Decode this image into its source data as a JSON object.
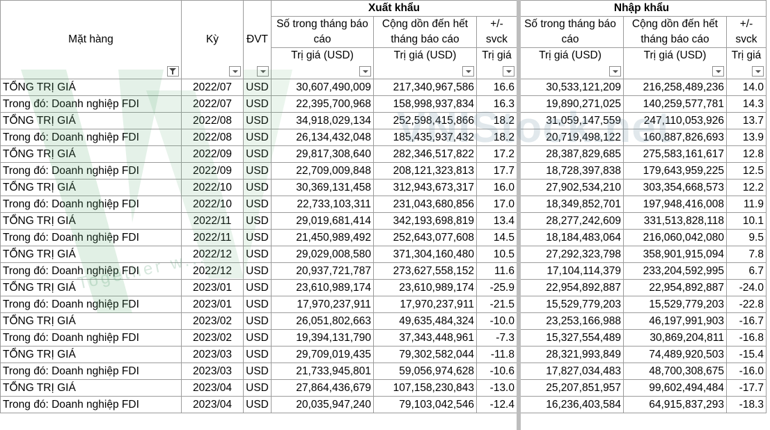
{
  "header": {
    "export_group": "Xuất khẩu",
    "import_group": "Nhập khẩu",
    "col_item": "Mặt hàng",
    "col_period": "Kỳ",
    "col_unit": "ĐVT",
    "col_month": "Số trong tháng báo cáo",
    "col_cumulative": "Cộng dồn đến hết tháng báo cáo",
    "col_change": "+/- svck",
    "col_value_usd": "Trị giá (USD)",
    "col_value": "Trị giá"
  },
  "watermark": {
    "text": "VNIStock.net",
    "tagline": "Together w..."
  },
  "rows": [
    {
      "item": "TỔNG TRỊ GIÁ",
      "period": "2022/07",
      "unit": "USD",
      "ex_month": "30,607,490,009",
      "ex_cum": "217,340,967,586",
      "ex_chg": "16.6",
      "im_month": "30,533,121,209",
      "im_cum": "216,258,489,236",
      "im_chg": "14.0"
    },
    {
      "item": "Trong đó: Doanh nghiệp FDI",
      "period": "2022/07",
      "unit": "USD",
      "ex_month": "22,395,700,968",
      "ex_cum": "158,998,937,834",
      "ex_chg": "16.3",
      "im_month": "19,890,271,025",
      "im_cum": "140,259,577,781",
      "im_chg": "14.3"
    },
    {
      "item": "TỔNG TRỊ GIÁ",
      "period": "2022/08",
      "unit": "USD",
      "ex_month": "34,918,029,134",
      "ex_cum": "252,598,415,866",
      "ex_chg": "18.2",
      "im_month": "31,059,147,559",
      "im_cum": "247,110,053,926",
      "im_chg": "13.7"
    },
    {
      "item": "Trong đó: Doanh nghiệp FDI",
      "period": "2022/08",
      "unit": "USD",
      "ex_month": "26,134,432,048",
      "ex_cum": "185,435,937,432",
      "ex_chg": "18.2",
      "im_month": "20,719,498,122",
      "im_cum": "160,887,826,693",
      "im_chg": "13.9"
    },
    {
      "item": "TỔNG TRỊ GIÁ",
      "period": "2022/09",
      "unit": "USD",
      "ex_month": "29,817,308,640",
      "ex_cum": "282,346,517,822",
      "ex_chg": "17.2",
      "im_month": "28,387,829,685",
      "im_cum": "275,583,161,617",
      "im_chg": "12.8"
    },
    {
      "item": "Trong đó: Doanh nghiệp FDI",
      "period": "2022/09",
      "unit": "USD",
      "ex_month": "22,709,009,848",
      "ex_cum": "208,121,323,813",
      "ex_chg": "17.7",
      "im_month": "18,728,397,838",
      "im_cum": "179,643,959,225",
      "im_chg": "12.5"
    },
    {
      "item": "TỔNG TRỊ GIÁ",
      "period": "2022/10",
      "unit": "USD",
      "ex_month": "30,369,131,458",
      "ex_cum": "312,943,673,317",
      "ex_chg": "16.0",
      "im_month": "27,902,534,210",
      "im_cum": "303,354,668,573",
      "im_chg": "12.2"
    },
    {
      "item": "Trong đó: Doanh nghiệp FDI",
      "period": "2022/10",
      "unit": "USD",
      "ex_month": "22,733,103,311",
      "ex_cum": "231,043,680,856",
      "ex_chg": "17.0",
      "im_month": "18,349,852,701",
      "im_cum": "197,948,416,008",
      "im_chg": "11.9"
    },
    {
      "item": "TỔNG TRỊ GIÁ",
      "period": "2022/11",
      "unit": "USD",
      "ex_month": "29,019,681,414",
      "ex_cum": "342,193,698,819",
      "ex_chg": "13.4",
      "im_month": "28,277,242,609",
      "im_cum": "331,513,828,118",
      "im_chg": "10.1"
    },
    {
      "item": "Trong đó: Doanh nghiệp FDI",
      "period": "2022/11",
      "unit": "USD",
      "ex_month": "21,450,989,492",
      "ex_cum": "252,643,077,608",
      "ex_chg": "14.5",
      "im_month": "18,184,483,064",
      "im_cum": "216,060,042,080",
      "im_chg": "9.5"
    },
    {
      "item": "TỔNG TRỊ GIÁ",
      "period": "2022/12",
      "unit": "USD",
      "ex_month": "29,029,008,580",
      "ex_cum": "371,304,160,480",
      "ex_chg": "10.5",
      "im_month": "27,292,323,798",
      "im_cum": "358,901,915,094",
      "im_chg": "7.8"
    },
    {
      "item": "Trong đó: Doanh nghiệp FDI",
      "period": "2022/12",
      "unit": "USD",
      "ex_month": "20,937,721,787",
      "ex_cum": "273,627,558,152",
      "ex_chg": "11.6",
      "im_month": "17,104,114,379",
      "im_cum": "233,204,592,995",
      "im_chg": "6.7"
    },
    {
      "item": "TỔNG TRỊ GIÁ",
      "period": "2023/01",
      "unit": "USD",
      "ex_month": "23,610,989,174",
      "ex_cum": "23,610,989,174",
      "ex_chg": "-25.9",
      "im_month": "22,954,892,887",
      "im_cum": "22,954,892,887",
      "im_chg": "-24.0"
    },
    {
      "item": "Trong đó: Doanh nghiệp FDI",
      "period": "2023/01",
      "unit": "USD",
      "ex_month": "17,970,237,911",
      "ex_cum": "17,970,237,911",
      "ex_chg": "-21.5",
      "im_month": "15,529,779,203",
      "im_cum": "15,529,779,203",
      "im_chg": "-22.8"
    },
    {
      "item": "TỔNG TRỊ GIÁ",
      "period": "2023/02",
      "unit": "USD",
      "ex_month": "26,051,802,663",
      "ex_cum": "49,635,484,324",
      "ex_chg": "-10.0",
      "im_month": "23,253,166,988",
      "im_cum": "46,197,991,903",
      "im_chg": "-16.7"
    },
    {
      "item": "Trong đó: Doanh nghiệp FDI",
      "period": "2023/02",
      "unit": "USD",
      "ex_month": "19,394,131,790",
      "ex_cum": "37,343,448,961",
      "ex_chg": "-7.3",
      "im_month": "15,327,554,489",
      "im_cum": "30,869,204,811",
      "im_chg": "-16.8"
    },
    {
      "item": "TỔNG TRỊ GIÁ",
      "period": "2023/03",
      "unit": "USD",
      "ex_month": "29,709,019,435",
      "ex_cum": "79,302,582,044",
      "ex_chg": "-11.8",
      "im_month": "28,321,993,849",
      "im_cum": "74,489,920,503",
      "im_chg": "-15.4"
    },
    {
      "item": "Trong đó: Doanh nghiệp FDI",
      "period": "2023/03",
      "unit": "USD",
      "ex_month": "21,733,945,801",
      "ex_cum": "59,056,974,628",
      "ex_chg": "-10.6",
      "im_month": "17,827,034,483",
      "im_cum": "48,700,308,675",
      "im_chg": "-16.0"
    },
    {
      "item": "TỔNG TRỊ GIÁ",
      "period": "2023/04",
      "unit": "USD",
      "ex_month": "27,864,436,679",
      "ex_cum": "107,158,230,843",
      "ex_chg": "-13.0",
      "im_month": "25,207,851,957",
      "im_cum": "99,602,494,484",
      "im_chg": "-17.7"
    },
    {
      "item": "Trong đó: Doanh nghiệp FDI",
      "period": "2023/04",
      "unit": "USD",
      "ex_month": "20,035,947,240",
      "ex_cum": "79,103,042,546",
      "ex_chg": "-12.4",
      "im_month": "16,236,403,584",
      "im_cum": "64,915,837,293",
      "im_chg": "-18.3"
    }
  ]
}
